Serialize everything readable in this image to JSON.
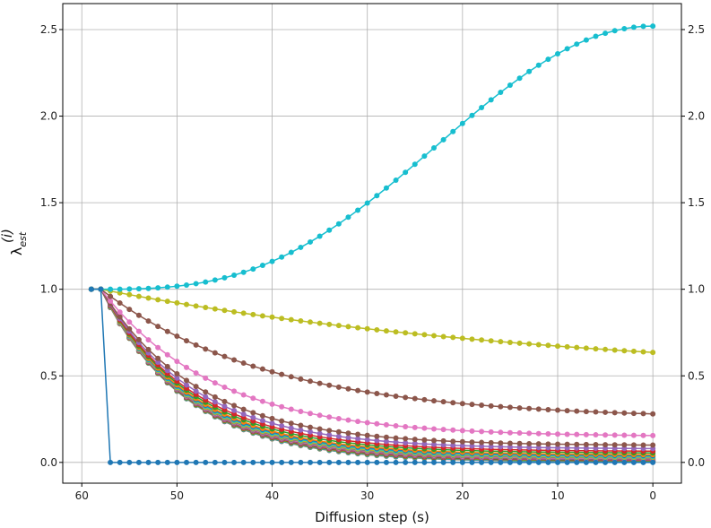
{
  "chart_data": {
    "type": "line",
    "title": "",
    "xlabel": "Diffusion step (s)",
    "ylabel": "λ_est^(i)",
    "ylabel_main": "λ",
    "ylabel_sub": "est",
    "ylabel_sup": "(i)",
    "x_inverted": true,
    "xlim": [
      62,
      -3
    ],
    "ylim": [
      -0.12,
      2.65
    ],
    "x_ticks": [
      60,
      50,
      40,
      30,
      20,
      10,
      0
    ],
    "x_tick_labels": [
      "60",
      "50",
      "40",
      "30",
      "20",
      "10",
      "0"
    ],
    "y_ticks": [
      0.0,
      0.5,
      1.0,
      1.5,
      2.0,
      2.5
    ],
    "y_tick_labels": [
      "0.0",
      "0.5",
      "1.0",
      "1.5",
      "2.0",
      "2.5"
    ],
    "right_y_ticks": true,
    "grid": true,
    "legend": "none",
    "marker": "circle",
    "x_start": 59,
    "x_end": 0,
    "x_step": 1,
    "series": [
      {
        "color": "#1f77b4",
        "start": 57,
        "value_at_start": 1.0,
        "final": 0.0,
        "shape": "step"
      },
      {
        "color": "#17becf",
        "start": 59,
        "value_at_start": 1.0,
        "final": 2.52,
        "shape": "rise"
      },
      {
        "color": "#bcbd22",
        "start": 58,
        "value_at_start": 1.0,
        "final": 0.635,
        "shape": "decay"
      },
      {
        "color": "#8c564b",
        "start": 58,
        "value_at_start": 1.0,
        "final": 0.28,
        "shape": "decay"
      },
      {
        "color": "#e377c2",
        "start": 58,
        "value_at_start": 1.0,
        "final": 0.155,
        "shape": "decay"
      },
      {
        "color": "#8c564b",
        "start": 58,
        "value_at_start": 1.0,
        "final": 0.1,
        "shape": "decay"
      },
      {
        "color": "#9467bd",
        "start": 58,
        "value_at_start": 1.0,
        "final": 0.08,
        "shape": "decay"
      },
      {
        "color": "#d62728",
        "start": 58,
        "value_at_start": 1.0,
        "final": 0.065,
        "shape": "decay"
      },
      {
        "color": "#2ca02c",
        "start": 58,
        "value_at_start": 1.0,
        "final": 0.055,
        "shape": "decay"
      },
      {
        "color": "#ff7f0e",
        "start": 58,
        "value_at_start": 1.0,
        "final": 0.045,
        "shape": "decay"
      },
      {
        "color": "#1f77b4",
        "start": 58,
        "value_at_start": 1.0,
        "final": 0.04,
        "shape": "decay"
      },
      {
        "color": "#17becf",
        "start": 58,
        "value_at_start": 1.0,
        "final": 0.035,
        "shape": "decay"
      },
      {
        "color": "#bcbd22",
        "start": 58,
        "value_at_start": 1.0,
        "final": 0.03,
        "shape": "decay"
      },
      {
        "color": "#7f7f7f",
        "start": 58,
        "value_at_start": 1.0,
        "final": 0.025,
        "shape": "decay"
      },
      {
        "color": "#e377c2",
        "start": 58,
        "value_at_start": 1.0,
        "final": 0.022,
        "shape": "decay"
      },
      {
        "color": "#8c564b",
        "start": 58,
        "value_at_start": 1.0,
        "final": 0.019,
        "shape": "decay"
      },
      {
        "color": "#9467bd",
        "start": 58,
        "value_at_start": 1.0,
        "final": 0.016,
        "shape": "decay"
      },
      {
        "color": "#d62728",
        "start": 58,
        "value_at_start": 1.0,
        "final": 0.013,
        "shape": "decay"
      },
      {
        "color": "#2ca02c",
        "start": 58,
        "value_at_start": 1.0,
        "final": 0.01,
        "shape": "decay"
      },
      {
        "color": "#ff7f0e",
        "start": 58,
        "value_at_start": 1.0,
        "final": 0.008,
        "shape": "decay"
      },
      {
        "color": "#1f77b4",
        "start": 58,
        "value_at_start": 1.0,
        "final": 0.006,
        "shape": "decay"
      },
      {
        "color": "#17becf",
        "start": 58,
        "value_at_start": 1.0,
        "final": 0.004,
        "shape": "decay"
      },
      {
        "color": "#bcbd22",
        "start": 58,
        "value_at_start": 1.0,
        "final": 0.003,
        "shape": "decay"
      },
      {
        "color": "#7f7f7f",
        "start": 58,
        "value_at_start": 1.0,
        "final": 0.002,
        "shape": "decay"
      },
      {
        "color": "#e377c2",
        "start": 58,
        "value_at_start": 1.0,
        "final": 0.001,
        "shape": "decay"
      }
    ]
  }
}
